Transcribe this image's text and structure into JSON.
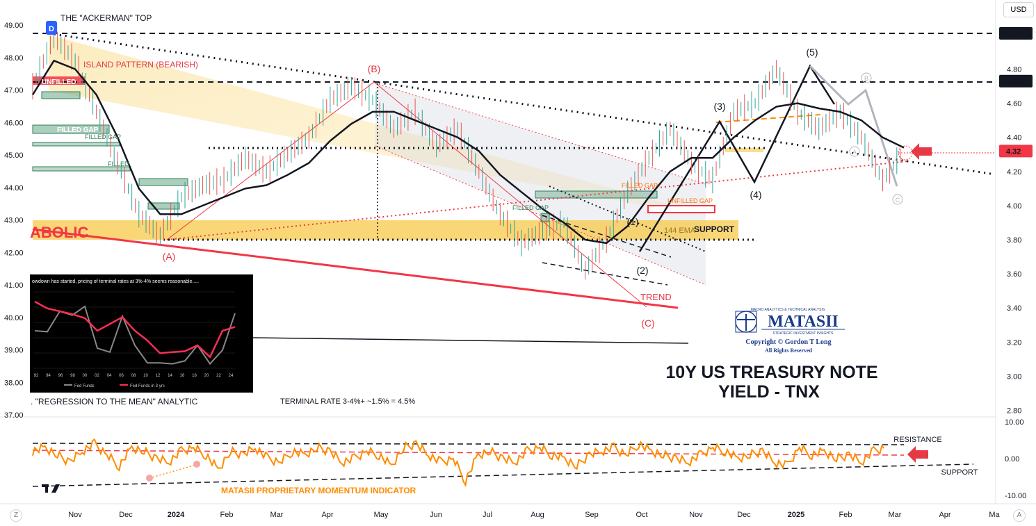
{
  "toolbar": {
    "currency_label": "USD",
    "scale_left_button": "Z",
    "scale_right_button": "A"
  },
  "colors": {
    "price_axis_bg": "#131722",
    "current_price_bg": "#f23645",
    "accent_red": "#e53946",
    "momentum_orange": "#ff8c00",
    "support_gold": "#f7c948"
  },
  "chart_data": [
    {
      "type": "line",
      "title": "10Y US TREASURY NOTE YIELD - TNX",
      "title_lines": [
        "10Y US TREASURY NOTE",
        "YIELD - TNX"
      ],
      "left_axis_ticks": [
        "49.00",
        "48.00",
        "47.00",
        "46.00",
        "45.00",
        "44.00",
        "43.00",
        "42.00",
        "41.00",
        "40.00",
        "39.00",
        "38.00",
        "37.00"
      ],
      "right_axis_ticks": [
        "4.80",
        "4.60",
        "4.40",
        "4.20",
        "4.00",
        "3.80",
        "3.60",
        "3.40",
        "3.20",
        "3.00",
        "2.80"
      ],
      "right_axis_highlight": [
        {
          "value": "5.01",
          "style": "dark"
        },
        {
          "value": "4.73",
          "style": "dark"
        },
        {
          "value": "4.32",
          "style": "red"
        }
      ],
      "ylim": [
        2.8,
        5.05
      ],
      "time_labels": [
        {
          "label": "Nov",
          "bold": false
        },
        {
          "label": "Dec",
          "bold": false
        },
        {
          "label": "2024",
          "bold": true
        },
        {
          "label": "Feb",
          "bold": false
        },
        {
          "label": "Mar",
          "bold": false
        },
        {
          "label": "Apr",
          "bold": false
        },
        {
          "label": "May",
          "bold": false
        },
        {
          "label": "Jun",
          "bold": false
        },
        {
          "label": "Jul",
          "bold": false
        },
        {
          "label": "Aug",
          "bold": false
        },
        {
          "label": "Sep",
          "bold": false
        },
        {
          "label": "Oct",
          "bold": false
        },
        {
          "label": "Nov",
          "bold": false
        },
        {
          "label": "Dec",
          "bold": false
        },
        {
          "label": "2025",
          "bold": true
        },
        {
          "label": "Feb",
          "bold": false
        },
        {
          "label": "Mar",
          "bold": false
        },
        {
          "label": "Apr",
          "bold": false
        },
        {
          "label": "Ma",
          "bold": false
        }
      ],
      "x": [
        "Oct-16",
        "Oct-23",
        "Nov-01",
        "Nov-15",
        "Dec-01",
        "Dec-15",
        "Dec-27",
        "Jan-10",
        "Jan-25",
        "Feb-05",
        "Feb-20",
        "Mar-05",
        "Mar-20",
        "Apr-01",
        "Apr-15",
        "Apr-25",
        "May-01",
        "May-15",
        "Jun-01",
        "Jun-15",
        "Jul-01",
        "Jul-15",
        "Aug-01",
        "Aug-05",
        "Aug-15",
        "Sep-01",
        "Sep-16",
        "Oct-01",
        "Oct-15",
        "Nov-01",
        "Nov-12",
        "Dec-01",
        "Dec-06",
        "Dec-20",
        "Jan-01",
        "Jan-14",
        "Jan-25",
        "Feb-05",
        "Feb-14",
        "Feb-22",
        "Mar-04",
        "Mar-14"
      ],
      "series": [
        {
          "values": [
            4.7,
            4.99,
            4.85,
            4.55,
            4.25,
            3.95,
            3.82,
            4.05,
            4.12,
            4.15,
            4.28,
            4.2,
            4.3,
            4.4,
            4.62,
            4.7,
            4.62,
            4.45,
            4.55,
            4.35,
            4.45,
            4.2,
            3.95,
            3.78,
            3.85,
            3.9,
            3.62,
            3.8,
            4.08,
            4.28,
            4.45,
            4.25,
            4.15,
            4.55,
            4.6,
            4.8,
            4.55,
            4.45,
            4.55,
            4.4,
            4.15,
            4.32
          ]
        },
        {
          "values": [
            4.65,
            4.85,
            4.8,
            4.65,
            4.4,
            4.1,
            3.95,
            3.95,
            4.0,
            4.05,
            4.1,
            4.12,
            4.18,
            4.25,
            4.38,
            4.48,
            4.55,
            4.55,
            4.5,
            4.45,
            4.4,
            4.32,
            4.18,
            4.08,
            3.98,
            3.9,
            3.8,
            3.78,
            3.88,
            4.05,
            4.2,
            4.28,
            4.28,
            4.4,
            4.5,
            4.58,
            4.6,
            4.57,
            4.55,
            4.5,
            4.4,
            4.34
          ]
        }
      ],
      "annotations": {
        "ackerman_top": "THE \"ACKERMAN\" TOP",
        "island_pattern": "ISLAND PATTERN (BEARISH)",
        "parabolic": "ABOLIC",
        "unfilled_1": "UNFILLED",
        "filled_gap_1": "FILLED GAP",
        "filled_gap_2": "FILLED GAP",
        "filled_3": "FILLED",
        "filled_gap_4": "FILLED GAP",
        "filled_gap_5": "FILLED GAP",
        "unfilled_gap": "UNFILLED GAP",
        "support": "SUPPORT",
        "ema": "144 EMA",
        "trend": "TREND",
        "wave_A": "(A)",
        "wave_B": "(B)",
        "wave_C": "(C)",
        "wave_1": "(1)",
        "wave_2": "(2)",
        "wave_3": "(3)",
        "wave_4": "(4)",
        "wave_5": "(5)",
        "circle_B": "B",
        "circle_C": "C",
        "circle_A": "A",
        "regression": ". \"REGRESSION TO THE MEAN\" ANALYTIC",
        "terminal_rate": "TERMINAL RATE 3-4%+ ~1.5% = 4.5%",
        "marker_d": "D"
      }
    },
    {
      "type": "line",
      "title": "",
      "inset_caption": "owdown has started, pricing of terminal rates at 3%-4% seems reasonable.....",
      "x": [
        "92",
        "94",
        "96",
        "98",
        "00",
        "02",
        "04",
        "06",
        "08",
        "10",
        "12",
        "14",
        "16",
        "18",
        "20",
        "22",
        "24"
      ],
      "legend": [
        "Fed Funds",
        "Fed Funds in 3 yrs"
      ],
      "series": [
        {
          "name": "Fed Funds",
          "values": [
            3.5,
            3.4,
            5.5,
            5.1,
            6.0,
            1.7,
            1.3,
            5.0,
            2.0,
            0.2,
            0.2,
            0.1,
            0.4,
            2.0,
            0.1,
            1.5,
            5.3
          ]
        },
        {
          "name": "Fed Funds in 3 yrs",
          "values": [
            6.5,
            5.8,
            5.5,
            5.2,
            4.8,
            3.5,
            4.2,
            4.9,
            3.5,
            2.5,
            1.2,
            1.3,
            1.4,
            2.0,
            0.8,
            3.5,
            3.9
          ]
        }
      ]
    },
    {
      "type": "line",
      "title": "MATASII PROPRIETARY MOMENTUM INDICATOR",
      "axis_ticks": [
        "10.00",
        "0.00",
        "-10.00"
      ],
      "ylim": [
        -10,
        10
      ],
      "labels": {
        "resistance": "RESISTANCE",
        "support": "SUPPORT"
      },
      "values": [
        2,
        3,
        1,
        -1,
        2,
        4,
        1,
        -2,
        3,
        2,
        0,
        -1,
        2,
        3,
        1,
        -3,
        2,
        1,
        3,
        0,
        -1,
        2,
        1,
        3,
        2,
        -1,
        0,
        2,
        1,
        -2,
        3,
        4,
        1,
        -1,
        0,
        -6,
        1,
        2,
        0,
        -1,
        2,
        3,
        1,
        0,
        -2,
        1,
        2,
        3,
        1,
        4,
        2,
        1,
        0,
        -1,
        1,
        3,
        2,
        0,
        1,
        2,
        -1,
        -2,
        3,
        1,
        2,
        0,
        1,
        -1,
        2,
        3
      ]
    }
  ],
  "logo": {
    "brand": "MATASII",
    "top_line": "MACRO ANALYTICS & TECHNICAL ANALYSIS",
    "sub_line": "STRATEGIC INVESTMENT INSIGHTS",
    "copyright": "Copyright © Gordon T Long",
    "rights": "All Rights Reserved"
  }
}
